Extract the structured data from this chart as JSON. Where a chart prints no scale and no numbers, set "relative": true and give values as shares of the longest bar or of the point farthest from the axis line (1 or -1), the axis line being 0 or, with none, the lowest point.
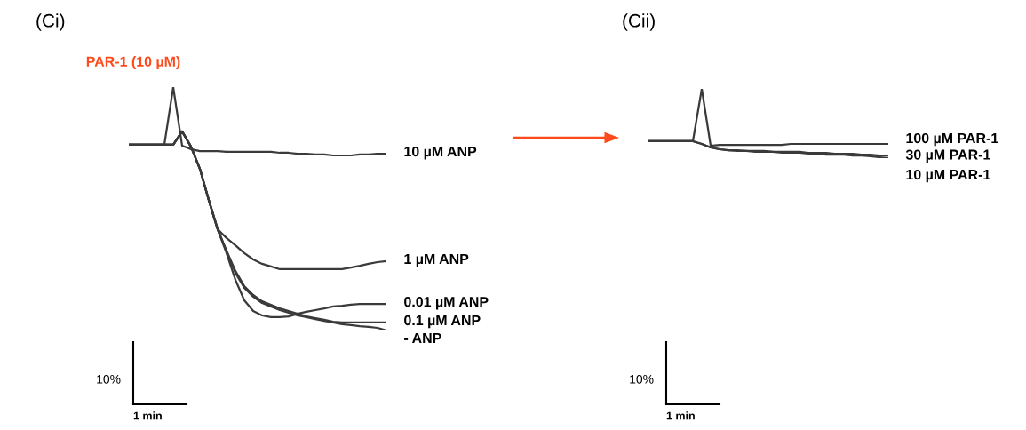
{
  "chart_data": [
    {
      "type": "line",
      "title": "(Ci)",
      "relative": true,
      "tick_labels": false,
      "legend": false,
      "marker": "none",
      "line_style": "solid",
      "categories": [
        null,
        null,
        null,
        null,
        null,
        null,
        null,
        null,
        null,
        null,
        null,
        null,
        null,
        null,
        null,
        null,
        null,
        null,
        null,
        null,
        null,
        null,
        null,
        null,
        null,
        null,
        null,
        null,
        null,
        null
      ],
      "annotations": [
        "PAR-1 (10 µM)",
        "10%",
        "1 min"
      ],
      "series": [
        {
          "name": "10 µM ANP",
          "color": "#3a3a3a",
          "values": [
            0.763,
            0.763,
            0.763,
            0.763,
            0.763,
            1,
            0.759,
            0.745,
            0.737,
            0.737,
            0.737,
            0.734,
            0.734,
            0.734,
            0.734,
            0.734,
            0.734,
            0.73,
            0.73,
            0.726,
            0.726,
            0.723,
            0.723,
            0.719,
            0.719,
            0.719,
            0.723,
            0.723,
            0.726,
            0.726
          ]
        },
        {
          "name": "1 µM ANP",
          "color": "#3a3a3a",
          "values": [
            0.763,
            0.763,
            0.763,
            0.763,
            0.763,
            0.763,
            0.818,
            0.755,
            0.664,
            0.536,
            0.416,
            0.38,
            0.35,
            0.318,
            0.292,
            0.274,
            0.263,
            0.252,
            0.252,
            0.252,
            0.252,
            0.252,
            0.252,
            0.252,
            0.252,
            0.259,
            0.266,
            0.274,
            0.281,
            0.285
          ]
        },
        {
          "name": "0.01 µM ANP",
          "color": "#3a3a3a",
          "values": [
            0.763,
            0.763,
            0.763,
            0.763,
            0.763,
            0.763,
            0.818,
            0.755,
            0.664,
            0.536,
            0.416,
            0.318,
            0.208,
            0.124,
            0.08,
            0.062,
            0.055,
            0.055,
            0.058,
            0.069,
            0.077,
            0.084,
            0.091,
            0.099,
            0.102,
            0.106,
            0.109,
            0.109,
            0.109,
            0.109
          ]
        },
        {
          "name": "0.1 µM ANP",
          "color": "#3a3a3a",
          "values": [
            0.763,
            0.763,
            0.763,
            0.763,
            0.763,
            0.763,
            0.818,
            0.755,
            0.664,
            0.536,
            0.416,
            0.328,
            0.245,
            0.182,
            0.146,
            0.12,
            0.106,
            0.091,
            0.08,
            0.069,
            0.058,
            0.051,
            0.044,
            0.036,
            0.033,
            0.033,
            0.033,
            0.033,
            0.033,
            0.033
          ]
        },
        {
          "name": "- ANP",
          "color": "#3a3a3a",
          "values": [
            0.763,
            0.763,
            0.763,
            0.763,
            0.763,
            0.763,
            0.818,
            0.755,
            0.664,
            0.536,
            0.416,
            0.325,
            0.237,
            0.175,
            0.139,
            0.113,
            0.099,
            0.084,
            0.073,
            0.062,
            0.055,
            0.047,
            0.04,
            0.033,
            0.026,
            0.022,
            0.018,
            0.015,
            0.011,
            0
          ]
        }
      ]
    },
    {
      "type": "line",
      "title": "(Cii)",
      "relative": true,
      "tick_labels": false,
      "legend": false,
      "marker": "none",
      "line_style": "solid",
      "categories": [
        null,
        null,
        null,
        null,
        null,
        null,
        null,
        null,
        null,
        null,
        null,
        null,
        null,
        null,
        null,
        null,
        null,
        null,
        null,
        null,
        null,
        null,
        null,
        null,
        null,
        null,
        null,
        null
      ],
      "annotations": [
        "10%",
        "1 min"
      ],
      "series": [
        {
          "name": "100 µM PAR-1",
          "color": "#3a3a3a",
          "values": [
            0.244,
            0.244,
            0.244,
            0.244,
            0.244,
            0.244,
            1,
            0.179,
            0.192,
            0.192,
            0.192,
            0.192,
            0.192,
            0.192,
            0.192,
            0.192,
            0.205,
            0.205,
            0.205,
            0.205,
            0.205,
            0.205,
            0.205,
            0.205,
            0.205,
            0.205,
            0.205,
            0.205
          ]
        },
        {
          "name": "30 µM PAR-1",
          "color": "#3a3a3a",
          "values": [
            0.244,
            0.244,
            0.244,
            0.244,
            0.244,
            0.244,
            0.205,
            0.154,
            0.128,
            0.115,
            0.115,
            0.103,
            0.103,
            0.103,
            0.09,
            0.09,
            0.09,
            0.09,
            0.077,
            0.077,
            0.077,
            0.064,
            0.064,
            0.064,
            0.051,
            0.051,
            0.038,
            0.038
          ]
        },
        {
          "name": "10 µM PAR-1",
          "color": "#3a3a3a",
          "values": [
            0.244,
            0.244,
            0.244,
            0.244,
            0.244,
            0.244,
            0.205,
            0.154,
            0.128,
            0.115,
            0.103,
            0.103,
            0.09,
            0.09,
            0.09,
            0.077,
            0.077,
            0.077,
            0.064,
            0.064,
            0.051,
            0.051,
            0.051,
            0.038,
            0.038,
            0.026,
            0.013,
            0
          ]
        }
      ]
    }
  ]
}
